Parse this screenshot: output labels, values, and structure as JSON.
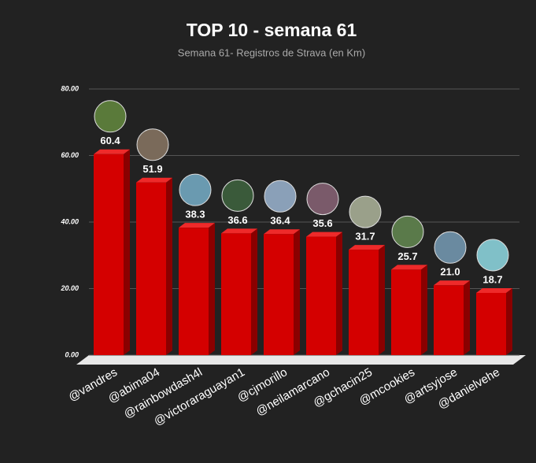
{
  "chart_data": {
    "type": "bar",
    "title": "TOP 10 - semana 61",
    "subtitle": "Semana 61- Registros de Strava (en Km)",
    "categories": [
      "@vandres",
      "@abima04",
      "@rainbowdash4l",
      "@victoraraguayan1",
      "@cjmorillo",
      "@neilamarcano",
      "@gchacin25",
      "@mcookies",
      "@artsyjose",
      "@danielvehe"
    ],
    "values": [
      60.4,
      51.9,
      38.3,
      36.6,
      36.4,
      35.6,
      31.7,
      25.7,
      21.0,
      18.7
    ],
    "value_labels": [
      "60.4",
      "51.9",
      "38.3",
      "36.6",
      "36.4",
      "35.6",
      "31.7",
      "25.7",
      "21.0",
      "18.7"
    ],
    "color": "#d40000",
    "ylim": [
      0,
      80
    ],
    "yticks": [
      {
        "value": 0,
        "label": "0.00"
      },
      {
        "value": 20,
        "label": "20.00"
      },
      {
        "value": 40,
        "label": "40.00"
      },
      {
        "value": 60,
        "label": "60.00"
      },
      {
        "value": 80,
        "label": "80.00"
      }
    ],
    "grid": true
  }
}
